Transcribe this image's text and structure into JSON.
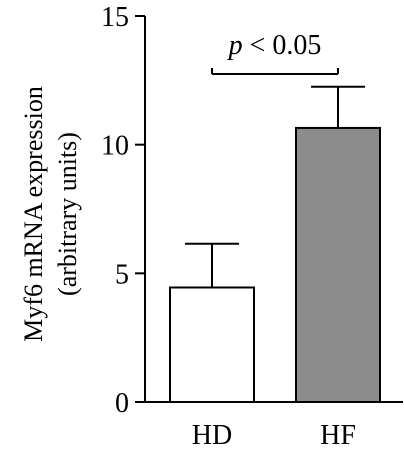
{
  "chart_data": {
    "type": "bar",
    "categories": [
      "HD",
      "HF"
    ],
    "values": [
      4.45,
      10.65
    ],
    "errors": [
      1.7,
      1.6
    ],
    "bar_fill": [
      "#ffffff",
      "#8c8c8c"
    ],
    "bar_stroke": "#000000",
    "ylabel_line1": "Myf6 mRNA expression",
    "ylabel_line2": "(arbitrary units)",
    "ylim": [
      0,
      15
    ],
    "yticks": [
      "0",
      "5",
      "10",
      "15"
    ],
    "significance": {
      "p_symbol": "p",
      "rest": " < 0.05"
    },
    "grid": false,
    "legend": "none"
  }
}
